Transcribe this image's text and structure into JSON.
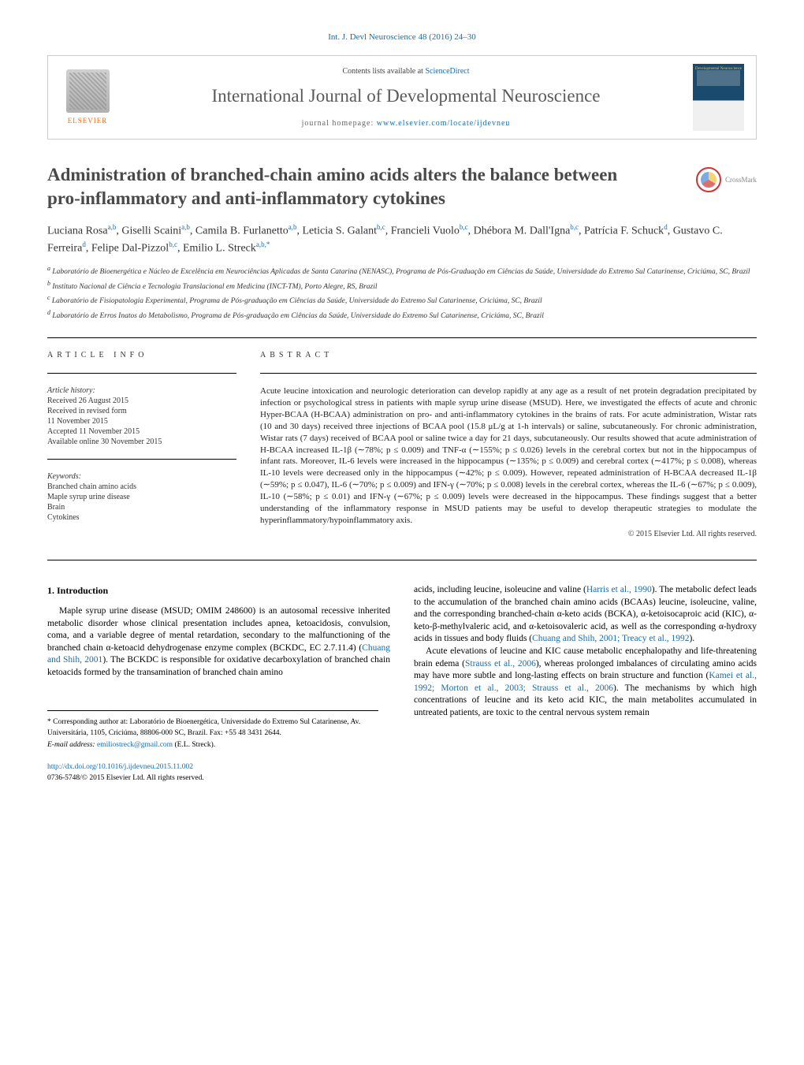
{
  "header": {
    "citation_link": "Int. J. Devl Neuroscience 48 (2016) 24–30",
    "contents_text": "Contents lists available at ",
    "contents_link": "ScienceDirect",
    "journal_title": "International Journal of Developmental Neuroscience",
    "homepage_label": "journal homepage: ",
    "homepage_link": "www.elsevier.com/locate/ijdevneu",
    "elsevier_label": "ELSEVIER",
    "cover_title": "Developmental Neuroscience"
  },
  "crossmark": {
    "label": "CrossMark"
  },
  "article": {
    "title": "Administration of branched-chain amino acids alters the balance between pro-inflammatory and anti-inflammatory cytokines",
    "authors_html": "Luciana Rosa<sup>a,b</sup>, Giselli Scaini<sup>a,b</sup>, Camila B. Furlanetto<sup>a,b</sup>, Leticia S. Galant<sup>b,c</sup>, Francieli Vuolo<sup>b,c</sup>, Dhébora M. Dall'Igna<sup>b,c</sup>, Patrícia F. Schuck<sup>d</sup>, Gustavo C. Ferreira<sup>d</sup>, Felipe Dal-Pizzol<sup>b,c</sup>, Emilio L. Streck<sup>a,b,*</sup>",
    "affiliations": [
      "a Laboratório de Bioenergética e Núcleo de Excelência em Neurociências Aplicadas de Santa Catarina (NENASC), Programa de Pós-Graduação em Ciências da Saúde, Universidade do Extremo Sul Catarinense, Criciúma, SC, Brazil",
      "b Instituto Nacional de Ciência e Tecnologia Translacional em Medicina (INCT-TM), Porto Alegre, RS, Brazil",
      "c Laboratório de Fisiopatologia Experimental, Programa de Pós-graduação em Ciências da Saúde, Universidade do Extremo Sul Catarinense, Criciúma, SC, Brazil",
      "d Laboratório de Erros Inatos do Metabolismo, Programa de Pós-graduação em Ciências da Saúde, Universidade do Extremo Sul Catarinense, Criciúma, SC, Brazil"
    ]
  },
  "article_info": {
    "heading": "ARTICLE INFO",
    "history_label": "Article history:",
    "history": [
      "Received 26 August 2015",
      "Received in revised form",
      "11 November 2015",
      "Accepted 11 November 2015",
      "Available online 30 November 2015"
    ],
    "keywords_label": "Keywords:",
    "keywords": [
      "Branched chain amino acids",
      "Maple syrup urine disease",
      "Brain",
      "Cytokines"
    ]
  },
  "abstract": {
    "heading": "ABSTRACT",
    "text": "Acute leucine intoxication and neurologic deterioration can develop rapidly at any age as a result of net protein degradation precipitated by infection or psychological stress in patients with maple syrup urine disease (MSUD). Here, we investigated the effects of acute and chronic Hyper-BCAA (H-BCAA) administration on pro- and anti-inflammatory cytokines in the brains of rats. For acute administration, Wistar rats (10 and 30 days) received three injections of BCAA pool (15.8 μL/g at 1-h intervals) or saline, subcutaneously. For chronic administration, Wistar rats (7 days) received of BCAA pool or saline twice a day for 21 days, subcutaneously. Our results showed that acute administration of H-BCAA increased IL-1β (∼78%; p ≤ 0.009) and TNF-α (∼155%; p ≤ 0.026) levels in the cerebral cortex but not in the hippocampus of infant rats. Moreover, IL-6 levels were increased in the hippocampus (∼135%; p ≤ 0.009) and cerebral cortex (∼417%; p ≤ 0.008), whereas IL-10 levels were decreased only in the hippocampus (∼42%; p ≤ 0.009). However, repeated administration of H-BCAA decreased IL-1β (∼59%; p ≤ 0.047), IL-6 (∼70%; p ≤ 0.009) and IFN-γ (∼70%; p ≤ 0.008) levels in the cerebral cortex, whereas the IL-6 (∼67%; p ≤ 0.009), IL-10 (∼58%; p ≤ 0.01) and IFN-γ (∼67%; p ≤ 0.009) levels were decreased in the hippocampus. These findings suggest that a better understanding of the inflammatory response in MSUD patients may be useful to develop therapeutic strategies to modulate the hyperinflammatory/hypoinflammatory axis.",
    "copyright": "© 2015 Elsevier Ltd. All rights reserved."
  },
  "body": {
    "intro_heading": "1. Introduction",
    "col1_p1": "Maple syrup urine disease (MSUD; OMIM 248600) is an autosomal recessive inherited metabolic disorder whose clinical presentation includes apnea, ketoacidosis, convulsion, coma, and a variable degree of mental retardation, secondary to the malfunctioning of the branched chain α-ketoacid dehydrogenase enzyme complex (BCKDC, EC 2.7.11.4) (",
    "col1_p1_link": "Chuang and Shih, 2001",
    "col1_p1_cont": "). The BCKDC is responsible for oxidative decarboxylation of branched chain ketoacids formed by the transamination of branched chain amino",
    "col2_p1": "acids, including leucine, isoleucine and valine (",
    "col2_p1_link": "Harris et al., 1990",
    "col2_p1_cont": "). The metabolic defect leads to the accumulation of the branched chain amino acids (BCAAs) leucine, isoleucine, valine, and the corresponding branched-chain α-keto acids (BCKA), α-ketoisocaproic acid (KIC), α-keto-β-methylvaleric acid, and α-ketoisovaleric acid, as well as the corresponding α-hydroxy acids in tissues and body fluids (",
    "col2_p1_link2": "Chuang and Shih, 2001; Treacy et al., 1992",
    "col2_p1_end": ").",
    "col2_p2": "Acute elevations of leucine and KIC cause metabolic encephalopathy and life-threatening brain edema (",
    "col2_p2_link": "Strauss et al., 2006",
    "col2_p2_cont": "), whereas prolonged imbalances of circulating amino acids may have more subtle and long-lasting effects on brain structure and function (",
    "col2_p2_link2": "Kamei et al., 1992; Morton et al., 2003; Strauss et al., 2006",
    "col2_p2_end": "). The mechanisms by which high concentrations of leucine and its keto acid KIC, the main metabolites accumulated in untreated patients, are toxic to the central nervous system remain"
  },
  "footer": {
    "corresponding": "* Corresponding author at: Laboratório de Bioenergética, Universidade do Extremo Sul Catarinense, Av. Universitária, 1105, Criciúma, 88806-000 SC, Brazil. Fax: +55 48 3431 2644.",
    "email_label": "E-mail address: ",
    "email": "emiliostreck@gmail.com",
    "email_suffix": " (E.L. Streck).",
    "doi_link": "http://dx.doi.org/10.1016/j.ijdevneu.2015.11.002",
    "issn": "0736-5748/© 2015 Elsevier Ltd. All rights reserved."
  },
  "colors": {
    "link": "#1a6ba8",
    "text": "#000000",
    "heading": "#494949",
    "elsevier_orange": "#ff6600",
    "border": "#cccccc"
  }
}
